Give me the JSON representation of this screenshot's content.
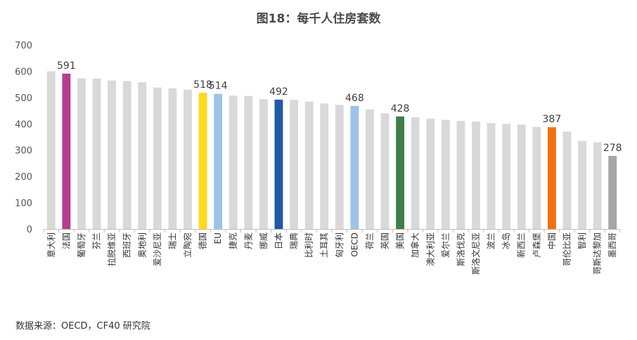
{
  "title": "图18：每千人住房套数",
  "source": "数据来源：OECD，CF40 研究院",
  "chart_data": {
    "type": "bar",
    "title": "图18：每千人住房套数",
    "xlabel": "",
    "ylabel": "",
    "ylim": [
      0,
      700
    ],
    "yticks": [
      0,
      100,
      200,
      300,
      400,
      500,
      600,
      700
    ],
    "grid": false,
    "categories": [
      "意大利",
      "法国",
      "葡萄牙",
      "芬兰",
      "拉脱维亚",
      "西班牙",
      "奥地利",
      "爱沙尼亚",
      "瑞士",
      "立陶宛",
      "德国",
      "EU",
      "捷克",
      "丹麦",
      "挪威",
      "日本",
      "瑞典",
      "比利时",
      "土耳其",
      "匈牙利",
      "OECD",
      "荷兰",
      "英国",
      "美国",
      "加拿大",
      "澳大利亚",
      "爱尔兰",
      "斯洛伐克",
      "斯洛文尼亚",
      "波兰",
      "冰岛",
      "新西兰",
      "卢森堡",
      "中国",
      "哥伦比亚",
      "智利",
      "哥斯达黎加",
      "墨西哥"
    ],
    "values": [
      600,
      591,
      573,
      572,
      565,
      563,
      558,
      538,
      535,
      530,
      518,
      514,
      507,
      506,
      494,
      492,
      492,
      485,
      477,
      472,
      468,
      455,
      440,
      428,
      425,
      420,
      415,
      411,
      409,
      403,
      400,
      397,
      388,
      387,
      370,
      335,
      330,
      278
    ],
    "colors": [
      "#d9d9d9",
      "#b83b8f",
      "#d9d9d9",
      "#d9d9d9",
      "#d9d9d9",
      "#d9d9d9",
      "#d9d9d9",
      "#d9d9d9",
      "#d9d9d9",
      "#d9d9d9",
      "#ffd91a",
      "#9dc3e6",
      "#d9d9d9",
      "#d9d9d9",
      "#d9d9d9",
      "#1f5aa8",
      "#d9d9d9",
      "#d9d9d9",
      "#d9d9d9",
      "#d9d9d9",
      "#9dc3e6",
      "#d9d9d9",
      "#d9d9d9",
      "#3f7f4a",
      "#d9d9d9",
      "#d9d9d9",
      "#d9d9d9",
      "#d9d9d9",
      "#d9d9d9",
      "#d9d9d9",
      "#d9d9d9",
      "#d9d9d9",
      "#d9d9d9",
      "#f2700f",
      "#d9d9d9",
      "#d9d9d9",
      "#d9d9d9",
      "#a6a6a6"
    ],
    "data_labels": [
      {
        "category": "法国",
        "text": "591"
      },
      {
        "category": "德国",
        "text": "518"
      },
      {
        "category": "EU",
        "text": "514"
      },
      {
        "category": "日本",
        "text": "492"
      },
      {
        "category": "OECD",
        "text": "468"
      },
      {
        "category": "美国",
        "text": "428"
      },
      {
        "category": "中国",
        "text": "387"
      },
      {
        "category": "墨西哥",
        "text": "278"
      }
    ]
  }
}
